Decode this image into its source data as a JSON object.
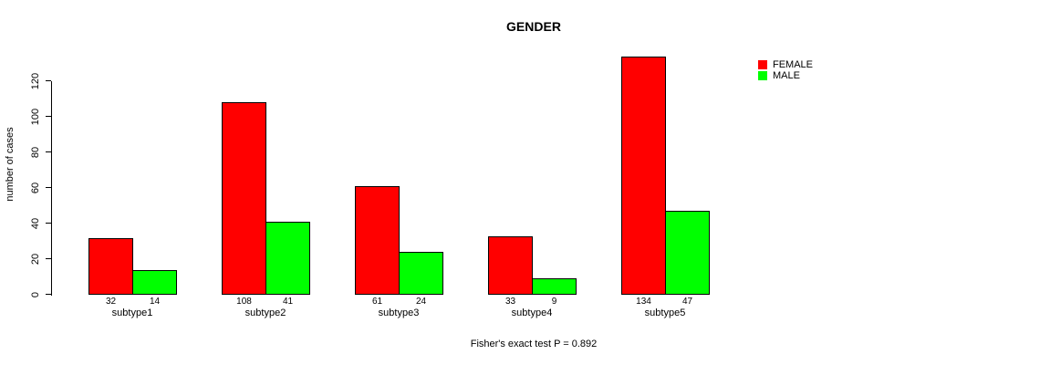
{
  "chart_data": {
    "type": "bar",
    "grouped": true,
    "title": "GENDER",
    "xlabel": "",
    "ylabel": "number of cases",
    "categories": [
      "subtype1",
      "subtype2",
      "subtype3",
      "subtype4",
      "subtype5"
    ],
    "series": [
      {
        "name": "FEMALE",
        "color": "#FF0000",
        "values": [
          32,
          108,
          61,
          33,
          134
        ]
      },
      {
        "name": "MALE",
        "color": "#00FF00",
        "values": [
          14,
          41,
          24,
          9,
          47
        ]
      }
    ],
    "value_labels_shown": true,
    "ylim": [
      0,
      140
    ],
    "yticks": [
      0,
      20,
      40,
      60,
      80,
      100,
      120
    ],
    "grid": false,
    "legend_position": "top-right",
    "annotation": "Fisher's exact test P = 0.892",
    "bar_border_color": "#000000",
    "background_color": "#FFFFFF"
  }
}
